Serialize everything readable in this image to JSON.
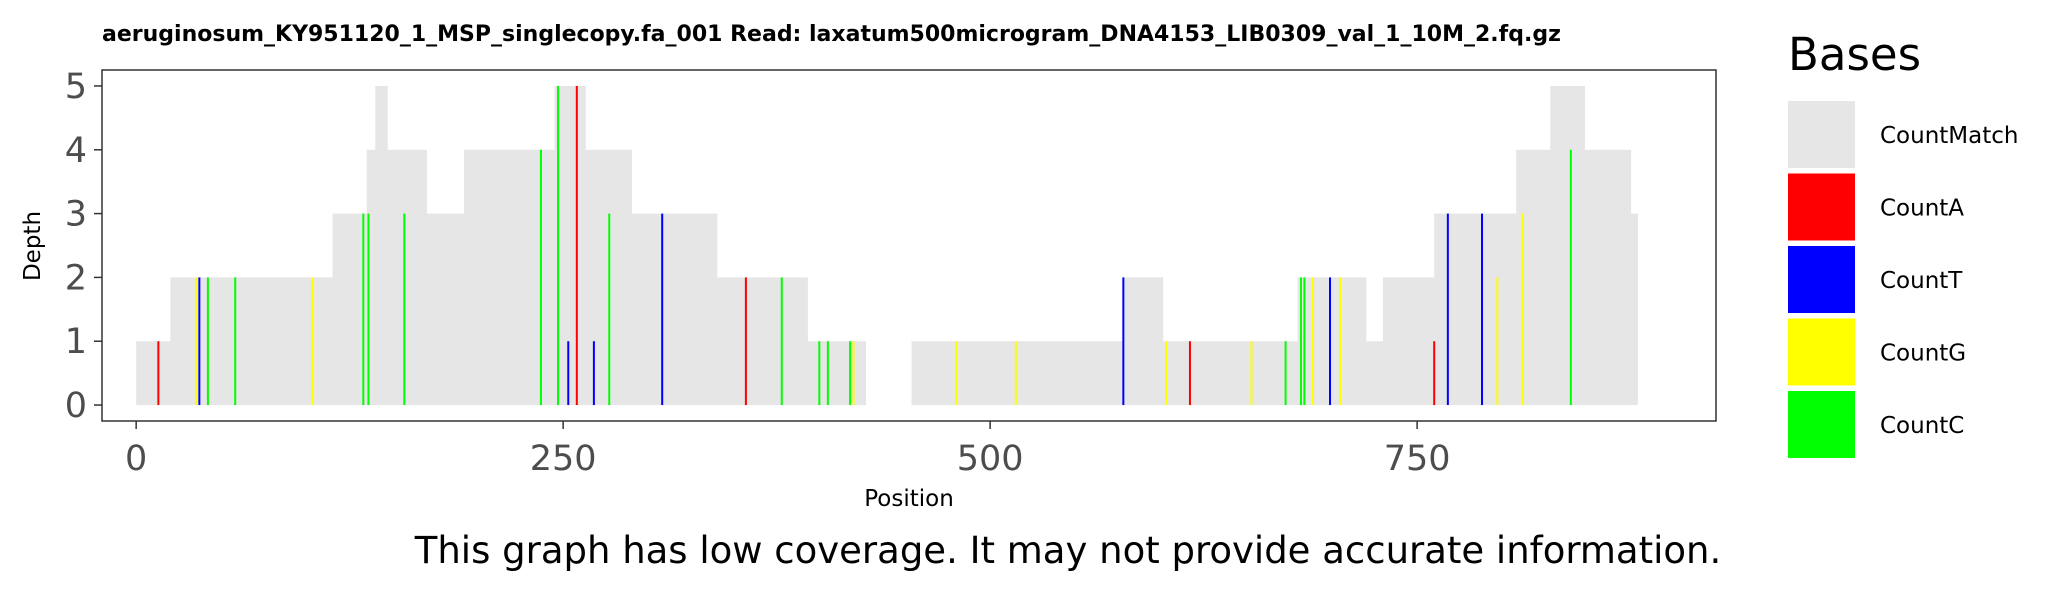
{
  "chart_data": {
    "type": "area",
    "title": "aeruginosum_KY951120_1_MSP_singlecopy.fa_001   Read: laxatum500microgram_DNA4153_LIB0309_val_1_10M_2.fq.gz",
    "xlabel": "Position",
    "ylabel": "Depth",
    "xlim": [
      -20,
      925
    ],
    "ylim": [
      -0.25,
      5.25
    ],
    "xticks": [
      0,
      250,
      500,
      750
    ],
    "yticks": [
      0,
      1,
      2,
      3,
      4,
      5
    ],
    "grid": false,
    "legend_title": "Bases",
    "legend_position": "right",
    "note": "This graph has low coverage. It may not provide accurate information.",
    "coverage": [
      [
        0,
        20,
        1
      ],
      [
        20,
        40,
        2
      ],
      [
        40,
        115,
        2
      ],
      [
        115,
        135,
        3
      ],
      [
        135,
        140,
        4
      ],
      [
        140,
        147,
        5
      ],
      [
        147,
        170,
        4
      ],
      [
        170,
        192,
        3
      ],
      [
        192,
        245,
        4
      ],
      [
        245,
        263,
        5
      ],
      [
        263,
        278,
        4
      ],
      [
        278,
        290,
        4
      ],
      [
        290,
        340,
        3
      ],
      [
        340,
        393,
        2
      ],
      [
        393,
        427,
        1
      ],
      [
        454,
        578,
        1
      ],
      [
        578,
        601,
        2
      ],
      [
        601,
        680,
        1
      ],
      [
        680,
        692,
        2
      ],
      [
        692,
        720,
        2
      ],
      [
        720,
        730,
        1
      ],
      [
        730,
        760,
        2
      ],
      [
        760,
        770,
        3
      ],
      [
        770,
        800,
        3
      ],
      [
        800,
        808,
        3
      ],
      [
        808,
        828,
        4
      ],
      [
        828,
        848,
        5
      ],
      [
        848,
        875,
        4
      ],
      [
        875,
        879,
        3
      ]
    ],
    "mismatches": [
      {
        "base": "A",
        "x": 13,
        "count": 1
      },
      {
        "base": "A",
        "x": 258,
        "count": 5
      },
      {
        "base": "A",
        "x": 357,
        "count": 2
      },
      {
        "base": "A",
        "x": 617,
        "count": 1
      },
      {
        "base": "A",
        "x": 760,
        "count": 1
      },
      {
        "base": "T",
        "x": 37,
        "count": 2
      },
      {
        "base": "T",
        "x": 253,
        "count": 1
      },
      {
        "base": "T",
        "x": 268,
        "count": 1
      },
      {
        "base": "T",
        "x": 308,
        "count": 3
      },
      {
        "base": "T",
        "x": 578,
        "count": 2
      },
      {
        "base": "T",
        "x": 699,
        "count": 2
      },
      {
        "base": "T",
        "x": 768,
        "count": 3
      },
      {
        "base": "T",
        "x": 788,
        "count": 3
      },
      {
        "base": "G",
        "x": 35,
        "count": 2
      },
      {
        "base": "G",
        "x": 103,
        "count": 2
      },
      {
        "base": "G",
        "x": 420,
        "count": 1
      },
      {
        "base": "G",
        "x": 480,
        "count": 1
      },
      {
        "base": "G",
        "x": 515,
        "count": 1
      },
      {
        "base": "G",
        "x": 603,
        "count": 1
      },
      {
        "base": "G",
        "x": 653,
        "count": 1
      },
      {
        "base": "G",
        "x": 689,
        "count": 2
      },
      {
        "base": "G",
        "x": 705,
        "count": 2
      },
      {
        "base": "G",
        "x": 797,
        "count": 2
      },
      {
        "base": "G",
        "x": 812,
        "count": 3
      },
      {
        "base": "C",
        "x": 42,
        "count": 2
      },
      {
        "base": "C",
        "x": 58,
        "count": 2
      },
      {
        "base": "C",
        "x": 133,
        "count": 3
      },
      {
        "base": "C",
        "x": 136,
        "count": 3
      },
      {
        "base": "C",
        "x": 157,
        "count": 3
      },
      {
        "base": "C",
        "x": 237,
        "count": 4
      },
      {
        "base": "C",
        "x": 247,
        "count": 5
      },
      {
        "base": "C",
        "x": 277,
        "count": 3
      },
      {
        "base": "C",
        "x": 378,
        "count": 2
      },
      {
        "base": "C",
        "x": 400,
        "count": 1
      },
      {
        "base": "C",
        "x": 405,
        "count": 1
      },
      {
        "base": "C",
        "x": 418,
        "count": 1
      },
      {
        "base": "C",
        "x": 673,
        "count": 1
      },
      {
        "base": "C",
        "x": 682,
        "count": 2
      },
      {
        "base": "C",
        "x": 684,
        "count": 2
      },
      {
        "base": "C",
        "x": 840,
        "count": 4
      }
    ],
    "legend": [
      {
        "key": "Match",
        "label": "CountMatch",
        "color": "#e6e6e6"
      },
      {
        "key": "A",
        "label": "CountA",
        "color": "#ff0000"
      },
      {
        "key": "T",
        "label": "CountT",
        "color": "#0000ff"
      },
      {
        "key": "G",
        "label": "CountG",
        "color": "#ffff00"
      },
      {
        "key": "C",
        "label": "CountC",
        "color": "#00ff00"
      }
    ]
  }
}
